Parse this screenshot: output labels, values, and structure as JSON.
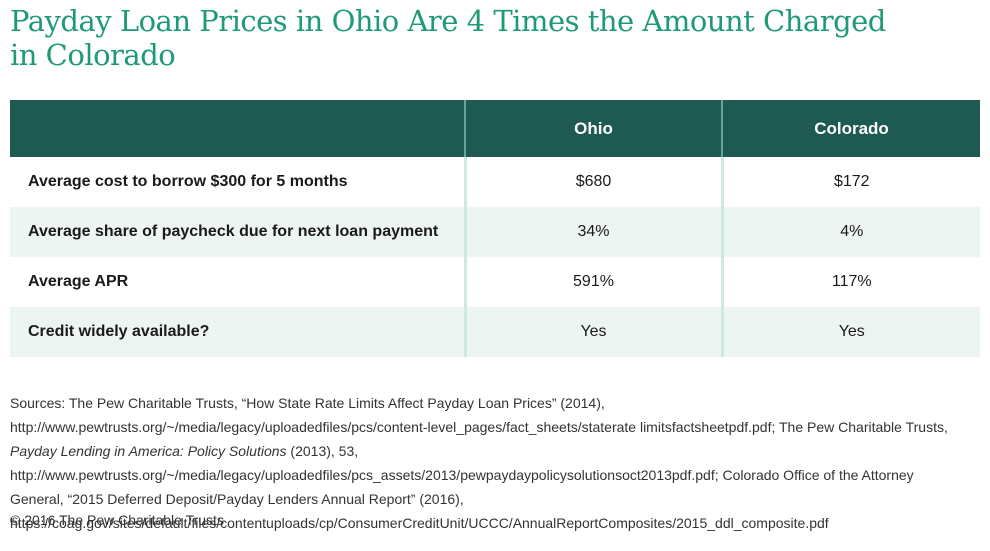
{
  "title": "Payday Loan Prices in Ohio Are 4 Times the Amount Charged in Colorado",
  "table": {
    "columns": [
      "",
      "Ohio",
      "Colorado"
    ],
    "rows": [
      {
        "label": "Average cost to borrow $300 for 5 months",
        "ohio": "$680",
        "colorado": "$172"
      },
      {
        "label": "Average share of paycheck due for next loan payment",
        "ohio": "34%",
        "colorado": "4%"
      },
      {
        "label": "Average APR",
        "ohio": "591%",
        "colorado": "117%"
      },
      {
        "label": "Credit widely available?",
        "ohio": "Yes",
        "colorado": "Yes"
      }
    ]
  },
  "sources": {
    "part1": "Sources: The Pew Charitable Trusts, “How State Rate Limits Affect Payday Loan Prices” (2014), http://www.pewtrusts.org/~/media/legacy/uploadedfiles/pcs/content-level_pages/fact_sheets/staterate limitsfactsheetpdf.pdf; The Pew Charitable Trusts, ",
    "italic": "Payday Lending in America: Policy Solutions",
    "part2": " (2013), 53, http://www.pewtrusts.org/~/media/legacy/uploadedfiles/pcs_assets/2013/pewpaydaypolicysolutionsoct2013pdf.pdf; Colorado Office of the Attorney General, “2015 Deferred Deposit/Payday Lenders Annual Report” (2016), https://coag.gov/sites/default/files/contentuploads/cp/ConsumerCreditUnit/UCCC/AnnualReportComposites/2015_ddl_composite.pdf"
  },
  "copyright": "© 2016 The Pew Charitable Trusts",
  "colors": {
    "title": "#1f9a78",
    "header_bg": "#1e5a52",
    "shaded_row": "#edf5f3"
  }
}
